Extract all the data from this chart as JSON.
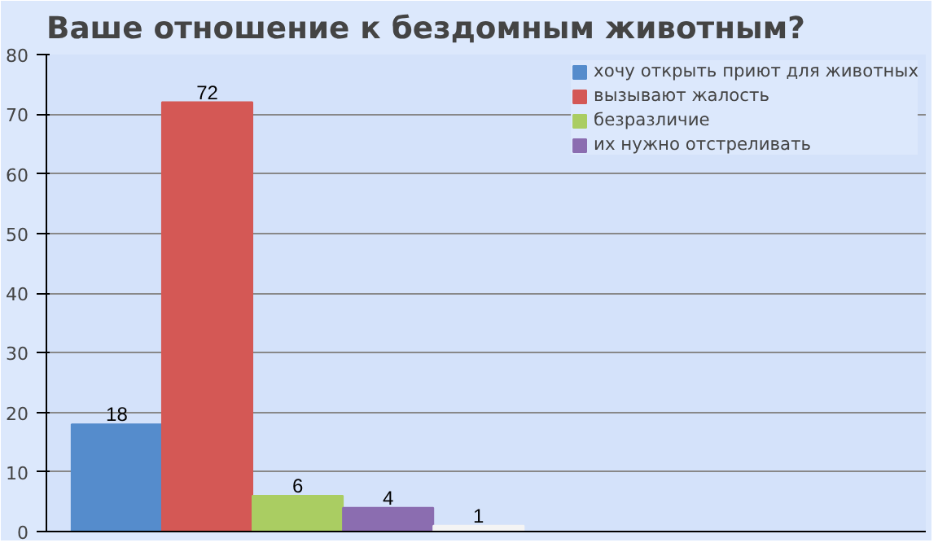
{
  "chart_data": {
    "type": "bar",
    "title": "Ваше отношение к бездомным животным?",
    "categories": [
      null
    ],
    "series": [
      {
        "name": "хочу открыть приют для животных",
        "color": "#558ccc",
        "values": [
          18
        ]
      },
      {
        "name": "вызывают жалость",
        "color": "#d45855",
        "values": [
          72
        ]
      },
      {
        "name": "безразличие",
        "color": "#aacd62",
        "values": [
          6
        ]
      },
      {
        "name": "их нужно отстреливать",
        "color": "#8b6db0",
        "values": [
          4
        ]
      },
      {
        "color": "#f4f4f4",
        "values": [
          1
        ]
      }
    ],
    "ylim": [
      0,
      80
    ],
    "yticks": [
      0,
      10,
      20,
      30,
      40,
      50,
      60,
      70,
      80
    ],
    "grid": "y",
    "legend": "right",
    "data_labels": true
  }
}
